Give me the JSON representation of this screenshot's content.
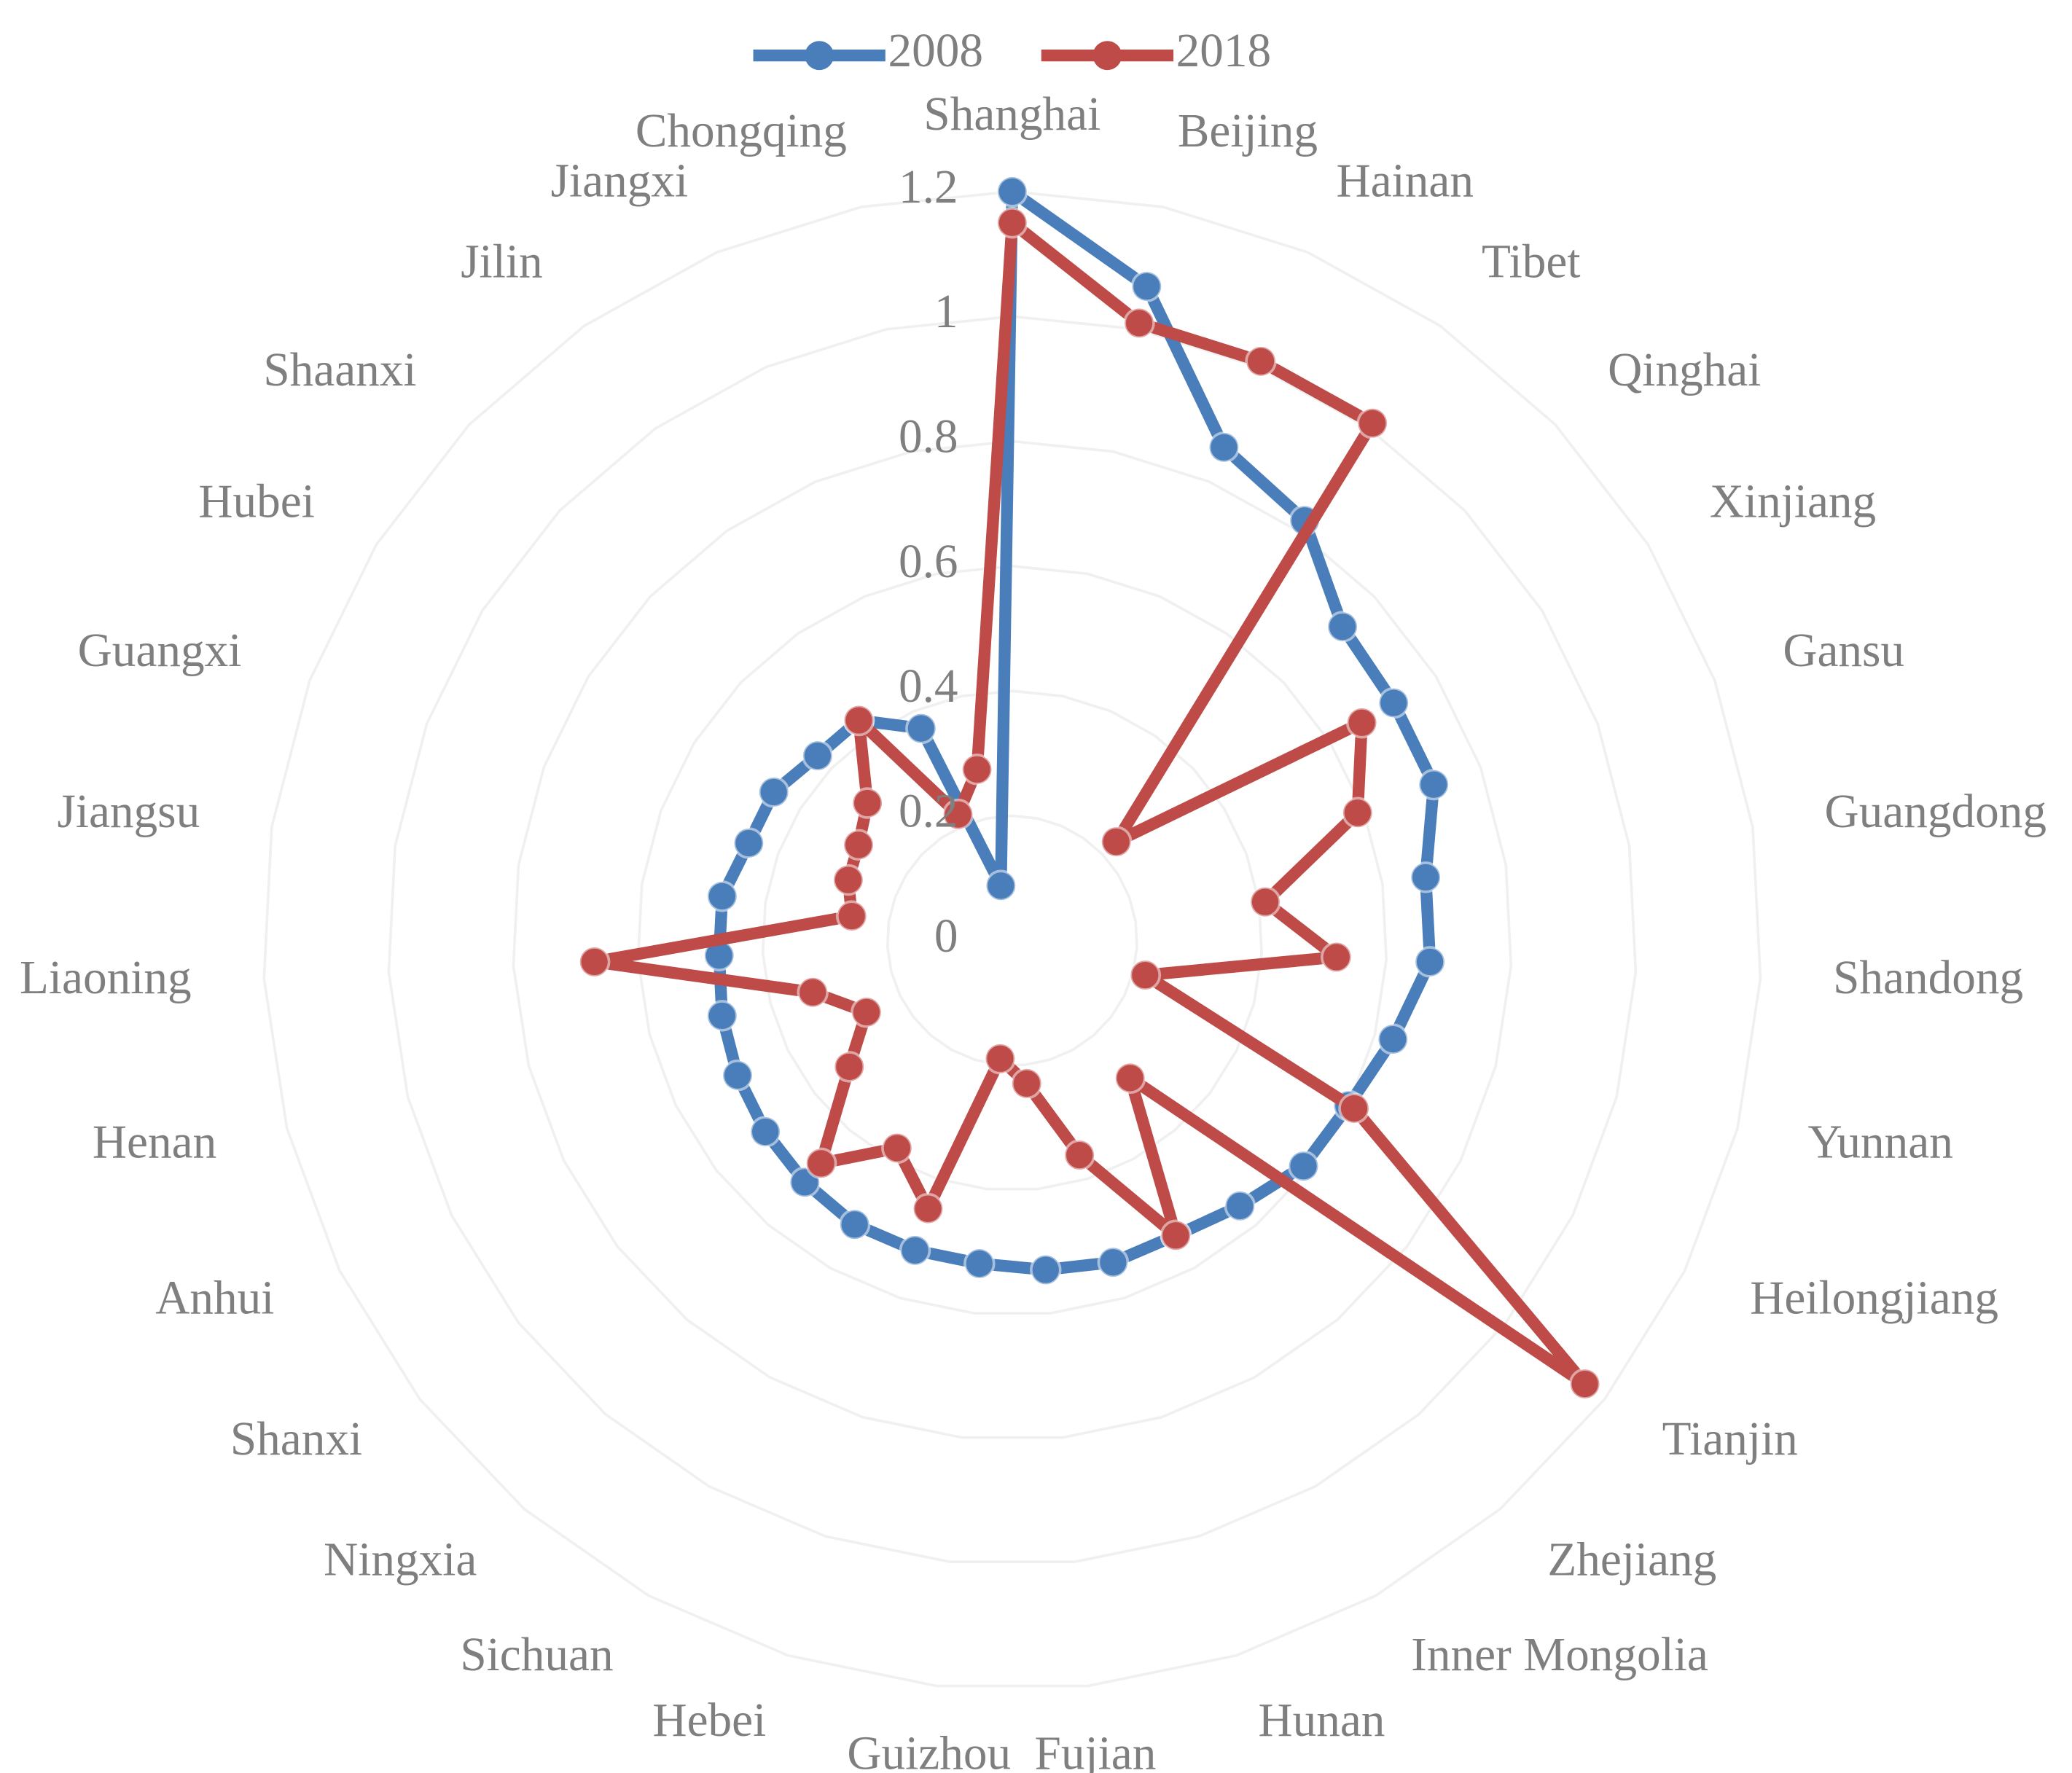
{
  "chart_data": {
    "type": "radar",
    "categories": [
      "Shanghai",
      "Beijing",
      "Hainan",
      "Tibet",
      "Qinghai",
      "Xinjiang",
      "Gansu",
      "Guangdong",
      "Shandong",
      "Yunnan",
      "Heilongjiang",
      "Tianjin",
      "Zhejiang",
      "Inner Mongolia",
      "Hunan",
      "Fujian",
      "Guizhou",
      "Hebei",
      "Sichuan",
      "Ningxia",
      "Shanxi",
      "Anhui",
      "Henan",
      "Liaoning",
      "Jiangsu",
      "Guangxi",
      "Hubei",
      "Shaanxi",
      "Jilin",
      "Jiangxi",
      "Chongqing"
    ],
    "series": [
      {
        "name": "2008",
        "color": "#4a7ebb",
        "values": [
          1.2,
          1.07,
          0.86,
          0.82,
          0.73,
          0.72,
          0.72,
          0.67,
          0.67,
          0.63,
          0.6,
          0.59,
          0.56,
          0.54,
          0.54,
          0.53,
          0.52,
          0.52,
          0.52,
          0.51,
          0.5,
          0.49,
          0.48,
          0.47,
          0.47,
          0.45,
          0.45,
          0.43,
          0.43,
          0.37,
          0.09
        ]
      },
      {
        "name": "2018",
        "color": "#be4b48",
        "values": [
          1.15,
          1.01,
          1.01,
          1.01,
          0.23,
          0.66,
          0.59,
          0.41,
          0.52,
          0.22,
          0.61,
          1.16,
          0.29,
          0.54,
          0.36,
          0.23,
          0.19,
          0.45,
          0.38,
          0.47,
          0.33,
          0.26,
          0.33,
          0.67,
          0.26,
          0.28,
          0.29,
          0.32,
          0.43,
          0.22,
          0.28
        ]
      }
    ],
    "ylim": [
      0,
      1.2
    ],
    "yticks": [
      0,
      0.2,
      0.4,
      0.6,
      0.8,
      1,
      1.2
    ],
    "grid": true,
    "legend": "top"
  }
}
